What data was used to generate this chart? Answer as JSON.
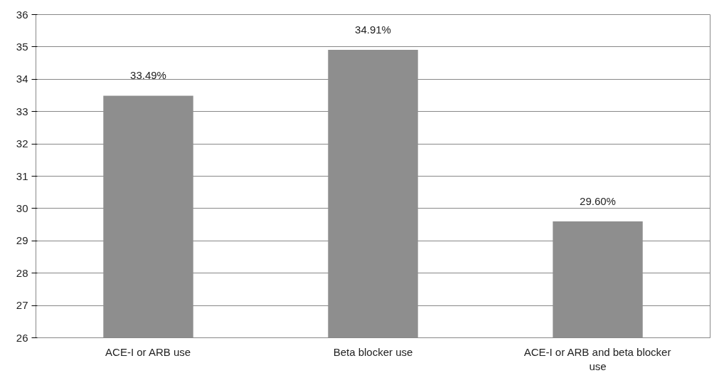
{
  "chart_data": {
    "type": "bar",
    "categories": [
      "ACE-I or ARB use",
      "Beta blocker use",
      "ACE-I or ARB and beta blocker use"
    ],
    "values": [
      33.49,
      34.91,
      29.6
    ],
    "value_labels": [
      "33.49%",
      "34.91%",
      "29.60%"
    ],
    "color": "#8e8e8e",
    "ylim": [
      26,
      36
    ],
    "yticks": [
      26,
      27,
      28,
      29,
      30,
      31,
      32,
      33,
      34,
      35,
      36
    ],
    "grid": "y"
  }
}
